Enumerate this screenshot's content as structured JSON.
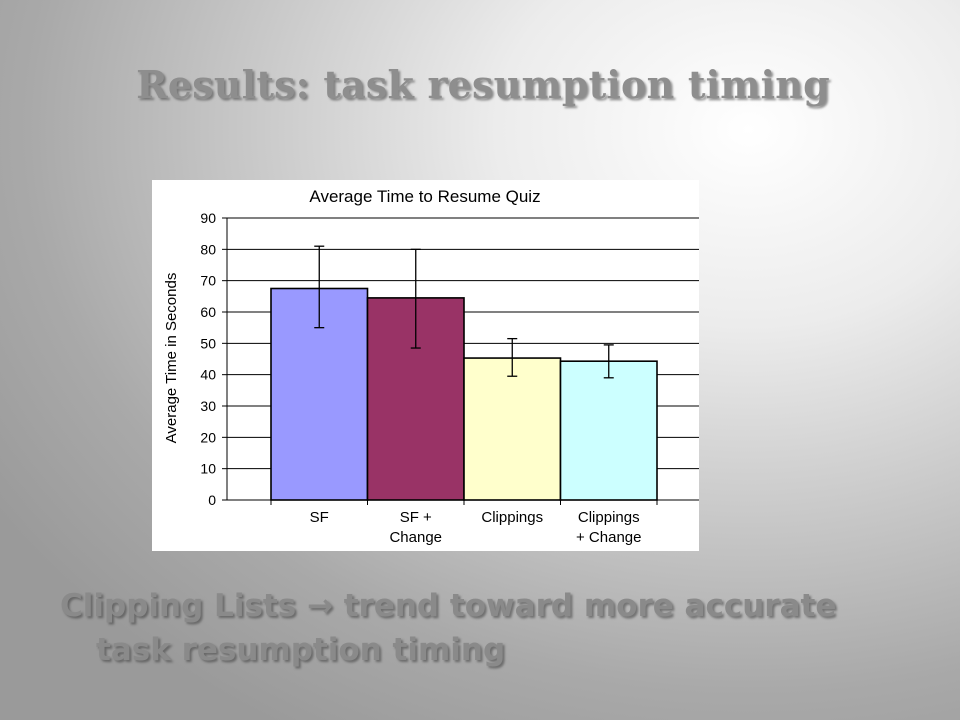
{
  "slide": {
    "title": "Results: task resumption timing",
    "bullet_line1": "Clipping Lists → trend toward more accurate",
    "bullet_line2": "task resumption timing"
  },
  "chart_data": {
    "type": "bar",
    "title": "Average Time to Resume Quiz",
    "xlabel": "",
    "ylabel": "Average Time in Seconds",
    "ylim": [
      0,
      90
    ],
    "yticks": [
      0,
      10,
      20,
      30,
      40,
      50,
      60,
      70,
      80,
      90
    ],
    "grid": true,
    "categories": [
      [
        "SF"
      ],
      [
        "SF +",
        "Change"
      ],
      [
        "Clippings"
      ],
      [
        "Clippings",
        "+ Change"
      ]
    ],
    "values": [
      67.5,
      64.5,
      45.3,
      44.3
    ],
    "error_low": [
      55,
      48.5,
      39.5,
      39
    ],
    "error_high": [
      81,
      80,
      51.5,
      49.5
    ],
    "colors": [
      "#9999ff",
      "#993366",
      "#ffffcc",
      "#ccffff"
    ]
  }
}
